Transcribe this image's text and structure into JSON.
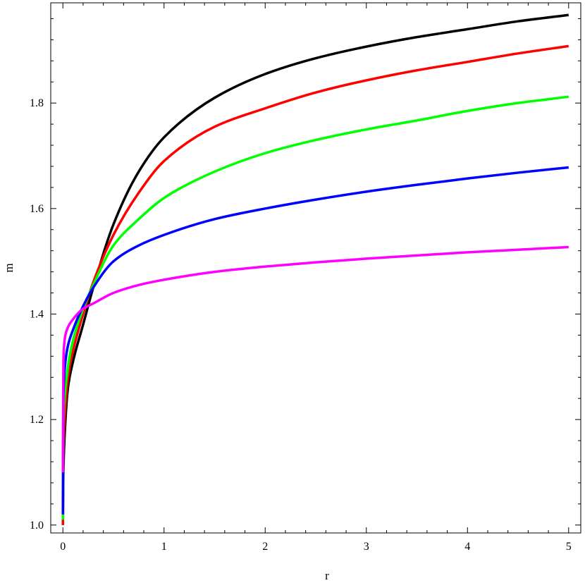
{
  "chart_data": {
    "type": "line",
    "title": "",
    "xlabel": "r",
    "ylabel": "m",
    "xlim": [
      -0.12,
      5.12
    ],
    "ylim": [
      0.985,
      1.99
    ],
    "x_ticks": [
      0,
      1,
      2,
      3,
      4,
      5
    ],
    "x_tick_labels": [
      "0",
      "1",
      "2",
      "3",
      "4",
      "5"
    ],
    "y_ticks": [
      1.0,
      1.2,
      1.4,
      1.6,
      1.8
    ],
    "y_tick_labels": [
      "1.0",
      "1.2",
      "1.4",
      "1.6",
      "1.8"
    ],
    "grid": false,
    "legend": "none",
    "series": [
      {
        "color": "#000000",
        "x": [
          0,
          0.005,
          0.02,
          0.05,
          0.1,
          0.2,
          0.3,
          0.5,
          0.75,
          1.0,
          1.5,
          2.0,
          2.5,
          3.0,
          3.5,
          4.0,
          4.5,
          5.0
        ],
        "y": [
          1.0,
          1.1,
          1.18,
          1.26,
          1.31,
          1.38,
          1.45,
          1.57,
          1.67,
          1.735,
          1.81,
          1.855,
          1.885,
          1.907,
          1.925,
          1.94,
          1.955,
          1.967
        ]
      },
      {
        "color": "#ff0000",
        "x": [
          0,
          0.005,
          0.02,
          0.05,
          0.1,
          0.2,
          0.3,
          0.5,
          0.75,
          1.0,
          1.5,
          2.0,
          2.5,
          3.0,
          3.5,
          4.0,
          4.5,
          5.0
        ],
        "y": [
          1.0,
          1.14,
          1.21,
          1.28,
          1.33,
          1.4,
          1.46,
          1.55,
          1.63,
          1.69,
          1.755,
          1.79,
          1.82,
          1.843,
          1.862,
          1.878,
          1.894,
          1.908
        ]
      },
      {
        "color": "#00ff00",
        "x": [
          0,
          0.005,
          0.02,
          0.05,
          0.1,
          0.2,
          0.3,
          0.5,
          0.75,
          1.0,
          1.5,
          2.0,
          2.5,
          3.0,
          3.5,
          4.0,
          4.5,
          5.0
        ],
        "y": [
          1.01,
          1.19,
          1.25,
          1.3,
          1.35,
          1.41,
          1.455,
          1.53,
          1.58,
          1.62,
          1.67,
          1.705,
          1.73,
          1.75,
          1.767,
          1.785,
          1.8,
          1.812
        ]
      },
      {
        "color": "#0000ff",
        "x": [
          0,
          0.005,
          0.02,
          0.05,
          0.1,
          0.2,
          0.3,
          0.5,
          0.75,
          1.0,
          1.5,
          2.0,
          2.5,
          3.0,
          3.5,
          4.0,
          4.5,
          5.0
        ],
        "y": [
          1.02,
          1.24,
          1.3,
          1.34,
          1.37,
          1.415,
          1.45,
          1.5,
          1.53,
          1.55,
          1.58,
          1.6,
          1.617,
          1.632,
          1.645,
          1.657,
          1.668,
          1.678
        ]
      },
      {
        "color": "#ff00ff",
        "x": [
          0,
          0.005,
          0.02,
          0.05,
          0.1,
          0.2,
          0.3,
          0.5,
          0.75,
          1.0,
          1.5,
          2.0,
          2.5,
          3.0,
          3.5,
          4.0,
          4.5,
          5.0
        ],
        "y": [
          1.1,
          1.31,
          1.355,
          1.375,
          1.39,
          1.41,
          1.42,
          1.44,
          1.455,
          1.465,
          1.48,
          1.49,
          1.498,
          1.505,
          1.511,
          1.517,
          1.522,
          1.527
        ]
      }
    ]
  }
}
